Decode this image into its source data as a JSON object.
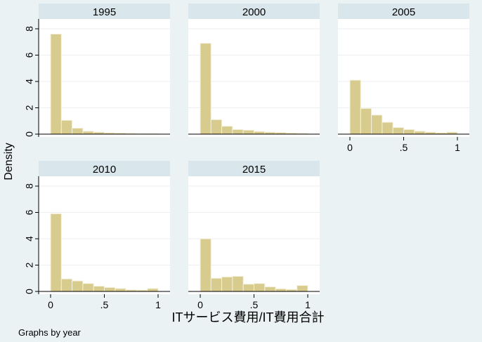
{
  "chart_data": {
    "type": "bar",
    "ylabel": "Density",
    "xlabel": "ITサービス費用/IT費用合計",
    "note": "Graphs by year",
    "xlim": [
      0,
      1
    ],
    "ylim": [
      0,
      8
    ],
    "x_ticks": [
      "0",
      ".5",
      "1"
    ],
    "x_tick_values": [
      0,
      0.5,
      1
    ],
    "y_ticks": [
      "0",
      "2",
      "4",
      "6",
      "8"
    ],
    "y_tick_values": [
      0,
      2,
      4,
      6,
      8
    ],
    "bin_edges": [
      0,
      0.1,
      0.2,
      0.3,
      0.4,
      0.5,
      0.6,
      0.7,
      0.8,
      0.9,
      1.0
    ],
    "grid": true,
    "colors": {
      "bar_fill": "#d7cb8d",
      "bar_stroke": "#f4f0dc",
      "panel_bg": "#ffffff",
      "strip_bg": "#d9e6eb",
      "page_bg": "#eaf2f3",
      "grid": "#e9eef0"
    },
    "panels": [
      {
        "title": "1995",
        "values": [
          7.6,
          1.05,
          0.45,
          0.22,
          0.15,
          0.1,
          0.08,
          0.06,
          0.04,
          0.03
        ]
      },
      {
        "title": "2000",
        "values": [
          6.9,
          1.1,
          0.6,
          0.35,
          0.3,
          0.2,
          0.15,
          0.12,
          0.08,
          0.06
        ]
      },
      {
        "title": "2005",
        "values": [
          4.1,
          1.95,
          1.45,
          0.9,
          0.5,
          0.35,
          0.22,
          0.15,
          0.1,
          0.15
        ]
      },
      {
        "title": "2010",
        "values": [
          5.9,
          0.95,
          0.8,
          0.6,
          0.4,
          0.3,
          0.22,
          0.12,
          0.1,
          0.22
        ]
      },
      {
        "title": "2015",
        "values": [
          4.0,
          1.0,
          1.1,
          1.15,
          0.55,
          0.6,
          0.35,
          0.2,
          0.15,
          0.45
        ]
      }
    ]
  }
}
